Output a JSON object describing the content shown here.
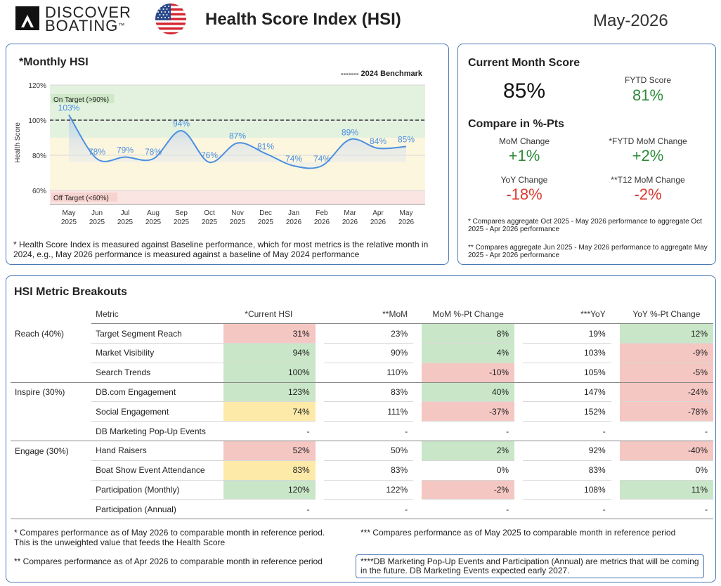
{
  "header": {
    "logo_line1": "DISCOVER",
    "logo_line2": "BOATING",
    "logo_tm": "™",
    "title": "Health Score Index (HSI)",
    "date": "May-2026"
  },
  "monthly": {
    "title": "*Monthly HSI",
    "note": "* Health Score Index is measured against Baseline performance, which for most metrics is the relative month in 2024, e.g., May 2026 performance is measured against a baseline of May 2024 performance"
  },
  "chart_data": {
    "type": "line",
    "title": "*Monthly HSI",
    "ylabel": "Health Score",
    "xlabel": "",
    "ylim": [
      52,
      122
    ],
    "y_ticks": [
      "60%",
      "80%",
      "100%",
      "120%"
    ],
    "y_tick_values": [
      60,
      80,
      100,
      120
    ],
    "categories": [
      "May 2025",
      "Jun 2025",
      "Jul 2025",
      "Aug 2025",
      "Sep 2025",
      "Oct 2025",
      "Nov 2025",
      "Dec 2025",
      "Jan 2026",
      "Feb 2026",
      "Mar 2026",
      "Apr 2026",
      "May 2026"
    ],
    "category_lines": [
      [
        "May",
        "2025"
      ],
      [
        "Jun",
        "2025"
      ],
      [
        "Jul",
        "2025"
      ],
      [
        "Aug",
        "2025"
      ],
      [
        "Sep",
        "2025"
      ],
      [
        "Oct",
        "2025"
      ],
      [
        "Nov",
        "2025"
      ],
      [
        "Dec",
        "2025"
      ],
      [
        "Jan",
        "2026"
      ],
      [
        "Feb",
        "2026"
      ],
      [
        "Mar",
        "2026"
      ],
      [
        "Apr",
        "2026"
      ],
      [
        "May",
        "2026"
      ]
    ],
    "series": [
      {
        "values": [
          103,
          78,
          79,
          78,
          94,
          76,
          87,
          81,
          74,
          74,
          89,
          84,
          85
        ],
        "labels": [
          "103%",
          "78%",
          "79%",
          "78%",
          "94%",
          "76%",
          "87%",
          "81%",
          "74%",
          "74%",
          "89%",
          "84%",
          "85%"
        ],
        "color": "#4a8fe0"
      }
    ],
    "benchmark": {
      "label": "------- 2024 Benchmark",
      "value": 100
    },
    "bands": [
      {
        "label": "On Target (>90%)",
        "from": 90,
        "to": 120,
        "color": "#e3f2df"
      },
      {
        "label": "",
        "from": 60,
        "to": 90,
        "color": "#fdf6df"
      },
      {
        "label": "Off Target (<60%)",
        "from": 52,
        "to": 60,
        "color": "#fbe5e3"
      }
    ],
    "grid": true,
    "legend": "top-right"
  },
  "current": {
    "title": "Current Month Score",
    "score": "85%",
    "fytd_label": "FYTD Score",
    "fytd_value": "81%",
    "compare_title": "Compare in %-Pts",
    "mom_label": "MoM Change",
    "mom_value": "+1%",
    "fytd_mom_label": "*FYTD MoM Change",
    "fytd_mom_value": "+2%",
    "yoy_label": "YoY Change",
    "yoy_value": "-18%",
    "t12_label": "**T12 MoM Change",
    "t12_value": "-2%",
    "foot1": "* Compares aggregate Oct 2025 - May 2026 performance to aggregate Oct 2025 - Apr 2026 performance",
    "foot2": "** Compares aggregate Jun 2025 - May 2026 performance to aggregate May 2025 - Apr 2026 performance"
  },
  "breakouts": {
    "title": "HSI Metric Breakouts",
    "headers": [
      "Metric",
      "*Current HSI",
      "**MoM",
      "MoM %-Pt Change",
      "***YoY",
      "YoY %-Pt Change"
    ],
    "rows": [
      {
        "cat": "Reach (40%)",
        "metric": "Target Segment Reach",
        "hsi": "31%",
        "mom": "23%",
        "mom_chg": "8%",
        "yoy": "19%",
        "yoy_chg": "12%"
      },
      {
        "cat": "",
        "metric": "Market Visibility",
        "hsi": "94%",
        "mom": "90%",
        "mom_chg": "4%",
        "yoy": "103%",
        "yoy_chg": "-9%"
      },
      {
        "cat": "",
        "metric": "Search Trends",
        "hsi": "100%",
        "mom": "110%",
        "mom_chg": "-10%",
        "yoy": "105%",
        "yoy_chg": "-5%"
      },
      {
        "cat": "Inspire (30%)",
        "metric": "DB.com Engagement",
        "hsi": "123%",
        "mom": "83%",
        "mom_chg": "40%",
        "yoy": "147%",
        "yoy_chg": "-24%"
      },
      {
        "cat": "",
        "metric": "Social Engagement",
        "hsi": "74%",
        "mom": "111%",
        "mom_chg": "-37%",
        "yoy": "152%",
        "yoy_chg": "-78%"
      },
      {
        "cat": "",
        "metric": "DB Marketing Pop-Up Events",
        "hsi": "-",
        "mom": "-",
        "mom_chg": "-",
        "yoy": "-",
        "yoy_chg": "-"
      },
      {
        "cat": "Engage (30%)",
        "metric": "Hand Raisers",
        "hsi": "52%",
        "mom": "50%",
        "mom_chg": "2%",
        "yoy": "92%",
        "yoy_chg": "-40%"
      },
      {
        "cat": "",
        "metric": "Boat Show Event Attendance",
        "hsi": "83%",
        "mom": "83%",
        "mom_chg": "0%",
        "yoy": "83%",
        "yoy_chg": "0%"
      },
      {
        "cat": "",
        "metric": "Participation (Monthly)",
        "hsi": "120%",
        "mom": "122%",
        "mom_chg": "-2%",
        "yoy": "108%",
        "yoy_chg": "11%"
      },
      {
        "cat": "",
        "metric": "Participation (Annual)",
        "hsi": "-",
        "mom": "-",
        "mom_chg": "-",
        "yoy": "-",
        "yoy_chg": "-"
      }
    ],
    "foot1": "* Compares performance as of May 2026 to comparable month in reference period. This is the unweighted value that feeds the Health Score",
    "foot2": "** Compares performance as of Apr 2026 to comparable month in reference period",
    "foot3": "*** Compares performance as of May 2025 to comparable month in reference period",
    "foot4": "****DB Marketing Pop-Up Events and Participation (Annual) are metrics that will be coming in the future. DB Marketing Events expected early 2027."
  },
  "colors": {
    "panel_border": "#4a78b5",
    "line": "#4a8fe0",
    "positive": "#2e8b3a",
    "negative": "#d93a2f",
    "cell_green": "#c9e7c8",
    "cell_red": "#f5c7c3",
    "cell_yellow": "#fdeaa8"
  }
}
